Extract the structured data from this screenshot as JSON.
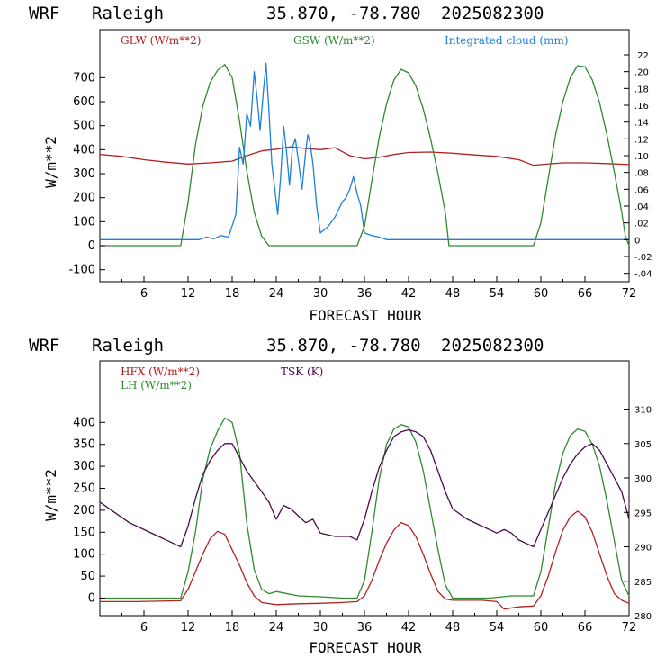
{
  "charts": [
    {
      "header": {
        "model": "WRF",
        "location": "Raleigh",
        "coords": "35.870, -78.780",
        "datetime": "2025082300"
      },
      "xlabel": "FORECAST HOUR",
      "ylabel": "W/m**2",
      "legend": [
        {
          "text": "GLW (W/m**2)",
          "color": "#b22222"
        },
        {
          "text": "GSW (W/m**2)",
          "color": "#2e8b2e"
        },
        {
          "text": "Integrated cloud (mm)",
          "color": "#1e7fd8"
        }
      ]
    },
    {
      "header": {
        "model": "WRF",
        "location": "Raleigh",
        "coords": "35.870, -78.780",
        "datetime": "2025082300"
      },
      "xlabel": "FORECAST HOUR",
      "ylabel": "W/m**2",
      "legend": [
        {
          "text": "HFX (W/m**2)",
          "color": "#b22222"
        },
        {
          "text": "LH  (W/m**2)",
          "color": "#2e8b2e"
        },
        {
          "text": "TSK (K)",
          "color": "#4b0a4b"
        }
      ]
    }
  ],
  "chart_data": [
    {
      "type": "line",
      "xlim": [
        0,
        72
      ],
      "ylim": [
        -150,
        900
      ],
      "y2lim": [
        -0.05,
        0.25
      ],
      "x_ticks": [
        "6",
        "12",
        "18",
        "24",
        "30",
        "36",
        "42",
        "48",
        "54",
        "60",
        "66",
        "72"
      ],
      "y_ticks": [
        "-100",
        "0",
        "100",
        "200",
        "300",
        "400",
        "500",
        "600",
        "700"
      ],
      "y2_ticks": [
        "-.04",
        "-.02",
        "0",
        ".02",
        ".04",
        ".06",
        ".08",
        ".10",
        ".12",
        ".14",
        ".16",
        ".18",
        ".20",
        ".22"
      ],
      "series": [
        {
          "name": "GLW (W/m**2)",
          "axis": "left",
          "color": "#b22222",
          "x": [
            0,
            3,
            6,
            9,
            12,
            15,
            18,
            20,
            22,
            24,
            26,
            28,
            30,
            32,
            34,
            36,
            38,
            40,
            42,
            45,
            48,
            51,
            54,
            57,
            59,
            60,
            63,
            66,
            69,
            72
          ],
          "y": [
            380,
            372,
            358,
            348,
            340,
            345,
            352,
            375,
            395,
            402,
            412,
            405,
            400,
            408,
            375,
            362,
            368,
            380,
            388,
            390,
            385,
            378,
            372,
            358,
            335,
            338,
            345,
            345,
            342,
            338
          ]
        },
        {
          "name": "GSW (W/m**2)",
          "axis": "left",
          "color": "#2e8b2e",
          "x": [
            0,
            11,
            12,
            13,
            14,
            15,
            16,
            17,
            18,
            19,
            20,
            21,
            22,
            23,
            35,
            36,
            37,
            38,
            39,
            40,
            41,
            42,
            43,
            44,
            45,
            46,
            47,
            47.5,
            59,
            60,
            61,
            62,
            63,
            64,
            65,
            66,
            67,
            68,
            69,
            70,
            71,
            71.5,
            72
          ],
          "y": [
            0,
            0,
            180,
            420,
            580,
            680,
            730,
            755,
            700,
            520,
            310,
            140,
            40,
            0,
            0,
            80,
            270,
            450,
            590,
            690,
            735,
            720,
            665,
            570,
            445,
            300,
            140,
            0,
            0,
            95,
            280,
            460,
            600,
            700,
            750,
            745,
            690,
            595,
            460,
            305,
            140,
            40,
            0
          ]
        },
        {
          "name": "Integrated cloud (mm)",
          "axis": "right",
          "color": "#1e7fd8",
          "x": [
            0,
            13.5,
            14.5,
            15.5,
            16.5,
            17.5,
            18.5,
            19,
            19.5,
            20,
            20.5,
            21,
            21.4,
            21.8,
            22.2,
            22.6,
            23,
            23.4,
            23.8,
            24.2,
            24.6,
            25,
            25.4,
            25.8,
            26.2,
            26.6,
            27,
            27.5,
            28,
            28.3,
            28.6,
            29,
            29.5,
            30,
            31,
            32,
            33,
            33.5,
            34,
            34.5,
            35,
            35.5,
            36,
            37,
            38,
            39,
            72
          ],
          "y": [
            0,
            0,
            0.003,
            0.001,
            0.005,
            0.003,
            0.03,
            0.11,
            0.09,
            0.15,
            0.135,
            0.2,
            0.168,
            0.13,
            0.172,
            0.21,
            0.155,
            0.09,
            0.06,
            0.03,
            0.075,
            0.135,
            0.105,
            0.065,
            0.11,
            0.12,
            0.095,
            0.06,
            0.105,
            0.125,
            0.115,
            0.09,
            0.04,
            0.008,
            0.015,
            0.027,
            0.045,
            0.05,
            0.06,
            0.075,
            0.055,
            0.04,
            0.008,
            0.005,
            0.003,
            0,
            0
          ]
        }
      ]
    },
    {
      "type": "line",
      "xlim": [
        0,
        72
      ],
      "ylim": [
        -40,
        540
      ],
      "y2lim": [
        280,
        317
      ],
      "x_ticks": [
        "6",
        "12",
        "18",
        "24",
        "30",
        "36",
        "42",
        "48",
        "54",
        "60",
        "66",
        "72"
      ],
      "y_ticks": [
        "0",
        "50",
        "100",
        "150",
        "200",
        "250",
        "300",
        "350",
        "400"
      ],
      "y2_ticks": [
        "280",
        "285",
        "290",
        "295",
        "300",
        "305",
        "310"
      ],
      "series": [
        {
          "name": "HFX (W/m**2)",
          "axis": "left",
          "color": "#b22222",
          "x": [
            0,
            5,
            11,
            12,
            13,
            14,
            15,
            16,
            17,
            18,
            19,
            20,
            21,
            22,
            24,
            27,
            30,
            33,
            35,
            36,
            37,
            38,
            39,
            40,
            41,
            42,
            43,
            44,
            45,
            46,
            47,
            48,
            52,
            54,
            55,
            57,
            59,
            60,
            61,
            62,
            63,
            64,
            65,
            66,
            67,
            68,
            69,
            70,
            71,
            72
          ],
          "y": [
            -8,
            -8,
            -6,
            20,
            60,
            100,
            135,
            152,
            145,
            110,
            75,
            35,
            5,
            -10,
            -15,
            -13,
            -12,
            -10,
            -8,
            5,
            40,
            85,
            125,
            155,
            172,
            165,
            140,
            100,
            55,
            15,
            -2,
            -5,
            -5,
            -8,
            -25,
            -20,
            -18,
            5,
            50,
            105,
            155,
            185,
            198,
            185,
            150,
            100,
            50,
            10,
            -5,
            -12
          ]
        },
        {
          "name": "LH  (W/m**2)",
          "axis": "left",
          "color": "#2e8b2e",
          "x": [
            0,
            11,
            12,
            13,
            14,
            15,
            16,
            17,
            18,
            19,
            20,
            21,
            22,
            23,
            24,
            27,
            30,
            33,
            35,
            36,
            37,
            38,
            39,
            40,
            41,
            42,
            43,
            44,
            45,
            46,
            47,
            48,
            53,
            56,
            59,
            60,
            61,
            62,
            63,
            64,
            65,
            66,
            67,
            68,
            69,
            70,
            71,
            72
          ],
          "y": [
            0,
            0,
            60,
            150,
            270,
            340,
            380,
            410,
            400,
            330,
            170,
            65,
            20,
            10,
            15,
            5,
            3,
            0,
            0,
            40,
            150,
            270,
            350,
            385,
            395,
            390,
            355,
            290,
            200,
            110,
            30,
            0,
            0,
            5,
            5,
            60,
            160,
            260,
            330,
            370,
            385,
            380,
            350,
            300,
            220,
            130,
            40,
            5
          ]
        },
        {
          "name": "TSK (K)",
          "axis": "right",
          "color": "#4b0a4b",
          "x": [
            0,
            2,
            4,
            6,
            8,
            10,
            11,
            12,
            13,
            14,
            15,
            16,
            17,
            18,
            19,
            20,
            21,
            22,
            23,
            24,
            25,
            26,
            27,
            28,
            29,
            30,
            32,
            34,
            35,
            36,
            37,
            38,
            39,
            40,
            41,
            42,
            43,
            44,
            45,
            46,
            47,
            48,
            50,
            52,
            54,
            55,
            56,
            57,
            58,
            59,
            60,
            61,
            62,
            63,
            64,
            65,
            66,
            67,
            68,
            69,
            70,
            71,
            72
          ],
          "y": [
            296.5,
            295,
            293.5,
            292.5,
            291.5,
            290.5,
            290,
            293,
            297,
            300.5,
            302.5,
            304,
            305,
            305,
            303,
            301,
            299.5,
            298,
            296.5,
            294,
            296,
            295.5,
            294.5,
            293.5,
            294,
            292,
            291.5,
            291.5,
            291,
            294,
            298,
            301.5,
            304,
            306,
            306.7,
            307,
            306.7,
            306,
            304,
            301,
            298,
            295.5,
            294,
            293,
            292,
            292.5,
            292,
            291,
            290.5,
            290,
            292.5,
            295,
            297.5,
            300,
            302,
            303.5,
            304.5,
            305,
            304,
            302,
            300,
            298,
            294
          ]
        }
      ]
    }
  ]
}
